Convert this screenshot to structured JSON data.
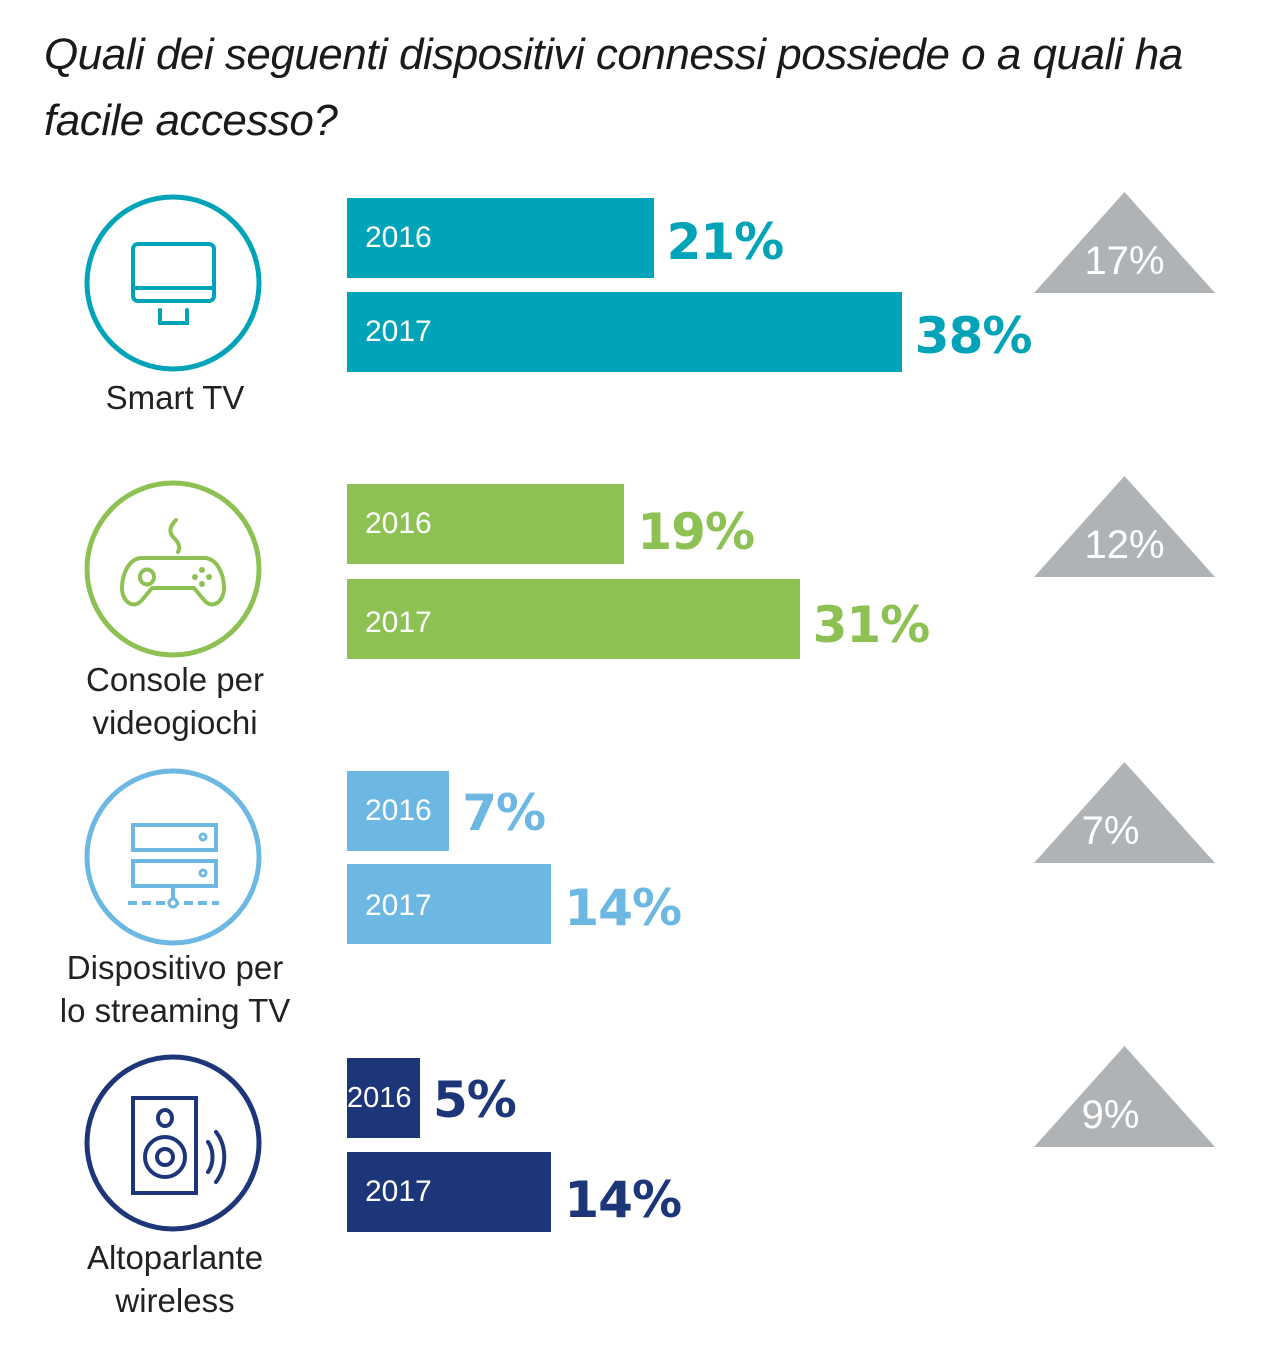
{
  "title": "Quali dei seguenti dispositivi connessi possiede o a quali ha facile accesso?",
  "chart_data": {
    "type": "bar",
    "orientation": "horizontal",
    "title": "Quali dei seguenti dispositivi connessi possiede o a quali ha facile accesso?",
    "categories": [
      "Smart TV",
      "Console per videogiochi",
      "Dispositivo per lo streaming TV",
      "Altoparlante wireless"
    ],
    "series": [
      {
        "name": "2016",
        "values": [
          21,
          19,
          7,
          5
        ]
      },
      {
        "name": "2017",
        "values": [
          38,
          31,
          14,
          14
        ]
      }
    ],
    "unit": "%",
    "xlim": [
      0,
      45
    ],
    "grid": false,
    "change_labels": [
      "17%",
      "12%",
      "7%",
      "9%"
    ]
  },
  "groups": [
    {
      "label_lines": [
        "Smart TV"
      ],
      "icon": "tv-monitor-icon",
      "color": "#00A3B7",
      "bars": [
        {
          "year": "2016",
          "value": 21,
          "label": "21%"
        },
        {
          "year": "2017",
          "value": 38,
          "label": "38%"
        }
      ],
      "change": "17%"
    },
    {
      "label_lines": [
        "Console per",
        "videogiochi"
      ],
      "icon": "gamepad-icon",
      "color": "#8DC153",
      "bars": [
        {
          "year": "2016",
          "value": 19,
          "label": "19%"
        },
        {
          "year": "2017",
          "value": 31,
          "label": "31%"
        }
      ],
      "change": "12%"
    },
    {
      "label_lines": [
        "Dispositivo per",
        "lo streaming TV"
      ],
      "icon": "streaming-server-icon",
      "color": "#6CB8E3",
      "bars": [
        {
          "year": "2016",
          "value": 7,
          "label": "7%"
        },
        {
          "year": "2017",
          "value": 14,
          "label": "14%"
        }
      ],
      "change": "7%"
    },
    {
      "label_lines": [
        "Altoparlante",
        "wireless"
      ],
      "icon": "speaker-icon",
      "color": "#1D3679",
      "bars": [
        {
          "year": "2016",
          "value": 5,
          "label": "5%"
        },
        {
          "year": "2017",
          "value": 14,
          "label": "14%"
        }
      ],
      "change": "9%"
    }
  ],
  "triangle_color": "#B0B3B6"
}
